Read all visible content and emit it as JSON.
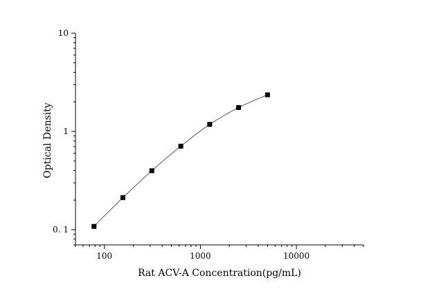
{
  "chart_data": {
    "type": "scatter",
    "title": "",
    "xlabel": "Rat ACV-A  Concentration(pg/mL)",
    "ylabel": "Optical Density",
    "x_scale": "log",
    "y_scale": "log",
    "xlim": [
      50,
      50000
    ],
    "ylim": [
      0.07,
      10
    ],
    "x_ticks": [
      "100",
      "1000",
      "10000"
    ],
    "y_ticks": [
      "0. 1",
      "1",
      "10"
    ],
    "grid": false,
    "legend": "none",
    "series": [
      {
        "x": [
          78,
          156,
          312,
          625,
          1250,
          2500,
          5000
        ],
        "y": [
          0.108,
          0.212,
          0.398,
          0.708,
          1.18,
          1.75,
          2.36
        ],
        "marker": "square",
        "fit_curve": true,
        "color": "#000000"
      }
    ]
  }
}
